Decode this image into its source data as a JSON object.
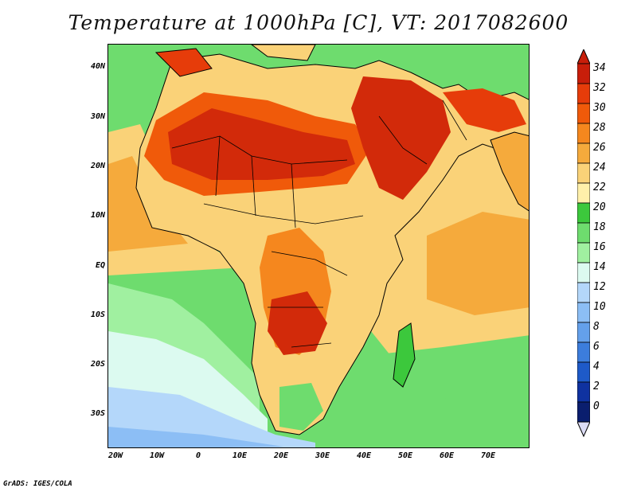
{
  "title": "Temperature at 1000hPa [C], VT: 2017082600",
  "credit": "GrADS: IGES/COLA",
  "lat_labels": [
    "40N",
    "30N",
    "20N",
    "10N",
    "EQ",
    "10S",
    "20S",
    "30S"
  ],
  "lon_labels": [
    "20W",
    "10W",
    "0",
    "10E",
    "20E",
    "30E",
    "40E",
    "50E",
    "60E",
    "70E"
  ],
  "colorbar": {
    "labels": [
      "34",
      "32",
      "30",
      "28",
      "26",
      "24",
      "22",
      "20",
      "18",
      "16",
      "14",
      "12",
      "10",
      "8",
      "6",
      "4",
      "2",
      "0"
    ],
    "colors": [
      "#c81e0a",
      "#e63c0a",
      "#f05a0a",
      "#f5871e",
      "#f5aa3c",
      "#fad278",
      "#fff0aa",
      "#3cc83c",
      "#6edc6e",
      "#a0f0a0",
      "#dcfaf0",
      "#b4d7fa",
      "#8cbef5",
      "#64a0eb",
      "#3c7ddc",
      "#1e5ac8",
      "#0f32a0",
      "#0a1e6e"
    ],
    "top_color": "#c81e0a",
    "bottom_color": "#dcdcf5"
  },
  "map": {
    "ocean_color": "#6edc6e",
    "south_ocean_color": "#b4d7fa",
    "land_hot_color": "#d22a0a",
    "land_warm_color": "#f5aa3c",
    "land_mild_color": "#fad278"
  }
}
